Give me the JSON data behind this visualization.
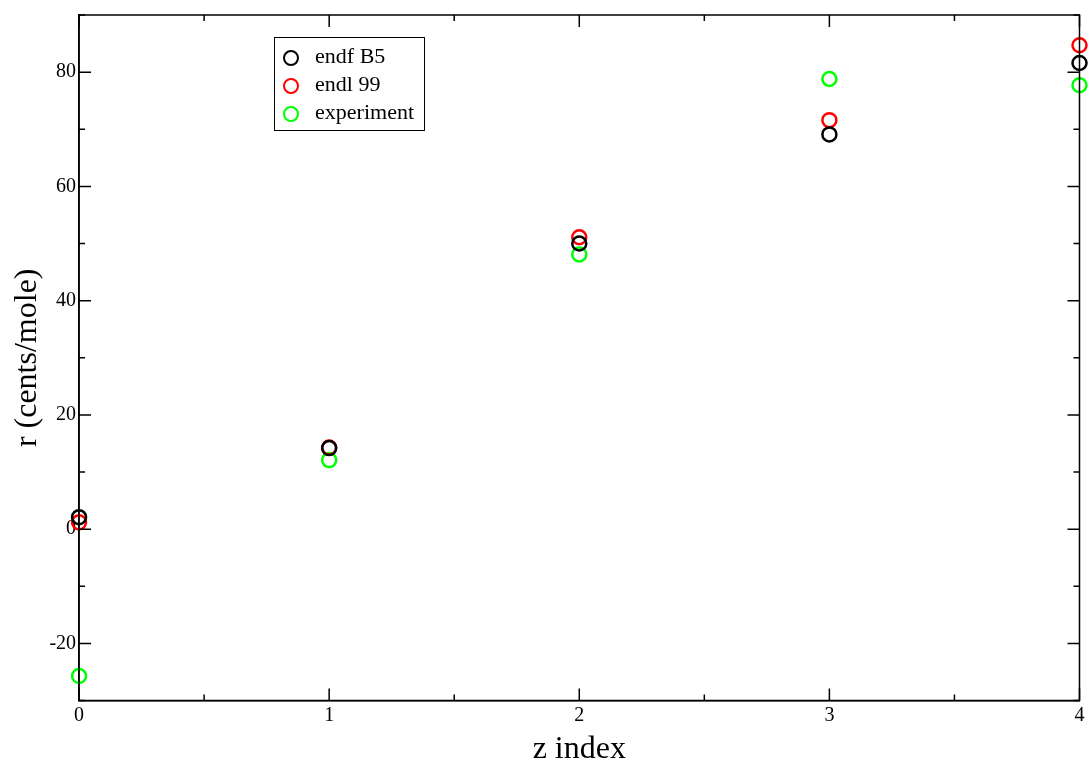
{
  "chart_data": {
    "type": "scatter",
    "xlabel": "z index",
    "ylabel": "r (cents/mole)",
    "marker": "circle",
    "legend": "top left",
    "x": [
      0,
      1,
      2,
      3,
      4
    ],
    "xlim": [
      0,
      4
    ],
    "xticks": [
      0,
      {
        "value": 0.5,
        "label": null
      },
      1,
      {
        "value": 1.5,
        "label": null
      },
      2,
      {
        "value": 2.5,
        "label": null
      },
      3,
      {
        "value": 3.5,
        "label": null
      },
      4
    ],
    "ylim": [
      -30,
      90
    ],
    "yticks": [
      {
        "value": -30,
        "label": null
      },
      -20,
      {
        "value": -10,
        "label": null
      },
      0,
      {
        "value": 10,
        "label": null
      },
      20,
      {
        "value": 30,
        "label": null
      },
      40,
      {
        "value": 50,
        "label": null
      },
      60,
      {
        "value": 70,
        "label": null
      },
      80,
      {
        "value": 90,
        "label": null
      }
    ],
    "series": [
      {
        "name": "endf B5",
        "color": "#000000",
        "values": [
          2.1,
          14.2,
          50.0,
          69.1,
          81.6
        ]
      },
      {
        "name": "endl 99",
        "color": "#ff0000",
        "values": [
          1.2,
          14.3,
          51.1,
          71.6,
          84.7
        ]
      },
      {
        "name": "experiment",
        "color": "#00ff00",
        "values": [
          -25.7,
          12.1,
          48.1,
          78.8,
          77.7
        ]
      }
    ]
  }
}
